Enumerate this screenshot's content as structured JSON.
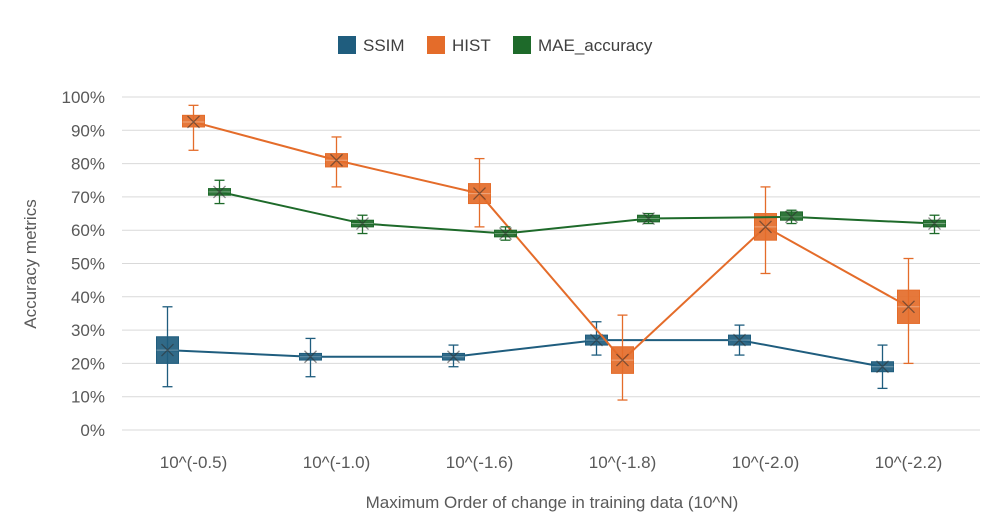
{
  "chart_data": {
    "type": "box",
    "title": "",
    "xlabel": "Maximum Order of change in training data (10^N)",
    "ylabel": "Accuracy metrics",
    "ylim": [
      0,
      100
    ],
    "yticks": [
      0,
      10,
      20,
      30,
      40,
      50,
      60,
      70,
      80,
      90,
      100
    ],
    "ytick_labels": [
      "0%",
      "10%",
      "20%",
      "30%",
      "40%",
      "50%",
      "60%",
      "70%",
      "80%",
      "90%",
      "100%"
    ],
    "grid": true,
    "legend_position": "top",
    "categories": [
      "10^(-0.5)",
      "10^(-1.0)",
      "10^(-1.6)",
      "10^(-1.8)",
      "10^(-2.0)",
      "10^(-2.2)"
    ],
    "series": [
      {
        "name": "SSIM",
        "color": "#1f5d7e",
        "means": [
          24,
          22,
          22,
          27,
          27,
          19
        ],
        "q1": [
          20,
          21,
          21,
          25.5,
          25.5,
          17.5
        ],
        "q3": [
          28,
          23,
          23,
          28.5,
          28.5,
          20.5
        ],
        "min": [
          13,
          16,
          19,
          22.5,
          22.5,
          12.5
        ],
        "max": [
          37,
          27.5,
          25.5,
          32.5,
          31.5,
          25.5
        ]
      },
      {
        "name": "HIST",
        "color": "#e46c2a",
        "means": [
          92.5,
          81,
          71,
          21,
          61,
          37
        ],
        "q1": [
          91,
          79,
          68,
          17,
          57,
          32
        ],
        "q3": [
          94.5,
          83,
          74,
          25,
          65,
          42
        ],
        "min": [
          84,
          73,
          61,
          9,
          47,
          20
        ],
        "max": [
          97.5,
          88,
          81.5,
          34.5,
          73,
          51.5
        ]
      },
      {
        "name": "MAE_accuracy",
        "color": "#1e6a2a",
        "means": [
          71.5,
          62,
          59,
          63.5,
          64,
          62
        ],
        "q1": [
          70.5,
          61,
          58,
          62.5,
          63,
          61
        ],
        "q3": [
          72.5,
          63,
          60,
          64.5,
          65.5,
          63
        ],
        "min": [
          68,
          59,
          57,
          62,
          62,
          59
        ],
        "max": [
          75,
          64.5,
          61,
          65,
          66,
          64.5
        ]
      }
    ]
  }
}
